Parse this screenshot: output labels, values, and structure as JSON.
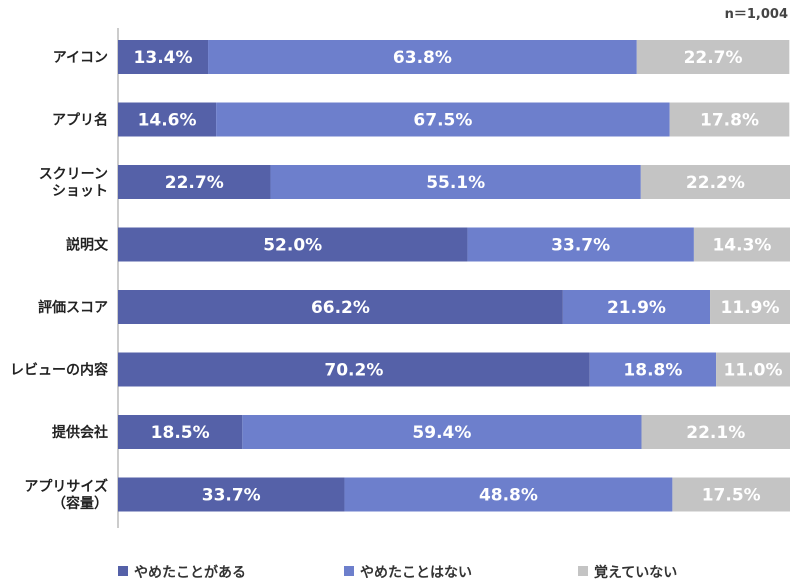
{
  "chart_data": {
    "type": "bar",
    "orientation": "horizontal",
    "stacked": true,
    "note": "n＝1,004",
    "categories": [
      [
        "アイコン"
      ],
      [
        "アプリ名"
      ],
      [
        "スクリーン",
        "ショット"
      ],
      [
        "説明文"
      ],
      [
        "評価スコア"
      ],
      [
        "レビューの内容"
      ],
      [
        "提供会社"
      ],
      [
        "アプリサイズ",
        "（容量）"
      ]
    ],
    "series": [
      {
        "name": "やめたことがある",
        "color": "#5561a8",
        "values": [
          13.4,
          14.6,
          22.7,
          52.0,
          66.2,
          70.2,
          18.5,
          33.7
        ]
      },
      {
        "name": "やめたことはない",
        "color": "#6d7fcc",
        "values": [
          63.8,
          67.5,
          55.1,
          33.7,
          21.9,
          18.8,
          59.4,
          48.8
        ]
      },
      {
        "name": "覚えていない",
        "color": "#c4c4c4",
        "values": [
          22.7,
          17.8,
          22.2,
          14.3,
          11.9,
          11.0,
          22.1,
          17.5
        ]
      }
    ],
    "value_format": "{v}%",
    "xlim": [
      0,
      100
    ],
    "grid": false,
    "legend_position": "bottom"
  }
}
